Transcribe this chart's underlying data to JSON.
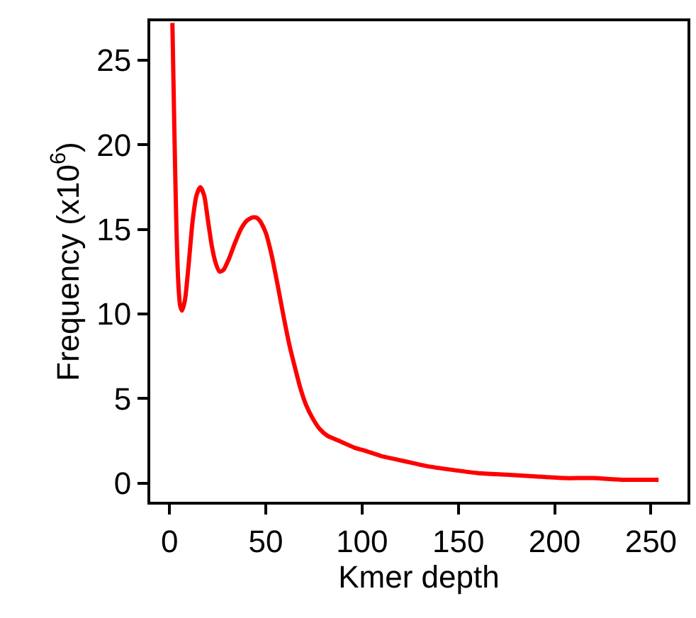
{
  "chart_data": {
    "type": "line",
    "xlabel": "Kmer depth",
    "ylabel": "Frequency (x10$^{6}$)",
    "x": [
      1.5,
      2.5,
      3.5,
      4.5,
      5.5,
      6.5,
      8,
      10,
      12,
      14,
      16,
      18,
      20,
      22,
      24,
      26,
      28,
      31,
      34,
      37,
      40,
      43,
      45,
      47,
      50,
      53,
      56,
      59,
      62,
      65,
      68,
      71,
      74,
      78,
      82,
      86,
      90,
      96,
      102,
      110,
      118,
      126,
      134,
      146,
      160,
      175,
      190,
      205,
      220,
      235,
      254
    ],
    "series": [
      {
        "color": "#ff0000",
        "values": [
          27.2,
          21,
          15.5,
          12,
          10.5,
          10.2,
          10.8,
          13,
          15.5,
          17,
          17.5,
          17,
          15.5,
          14,
          13,
          12.5,
          12.6,
          13.3,
          14.2,
          15,
          15.5,
          15.7,
          15.7,
          15.5,
          14.8,
          13.5,
          11.8,
          10,
          8.3,
          6.9,
          5.6,
          4.6,
          3.9,
          3.2,
          2.8,
          2.6,
          2.4,
          2.1,
          1.9,
          1.6,
          1.4,
          1.2,
          1.0,
          0.8,
          0.6,
          0.5,
          0.4,
          0.3,
          0.3,
          0.2,
          0.2
        ]
      }
    ],
    "xlim": [
      -10,
      269
    ],
    "ylim": [
      -1.1,
      27.3
    ],
    "xticks": [
      0,
      50,
      100,
      150,
      200,
      250
    ],
    "yticks": [
      0,
      5,
      10,
      15,
      20,
      25
    ],
    "marker": "none",
    "line_style": "solid"
  }
}
